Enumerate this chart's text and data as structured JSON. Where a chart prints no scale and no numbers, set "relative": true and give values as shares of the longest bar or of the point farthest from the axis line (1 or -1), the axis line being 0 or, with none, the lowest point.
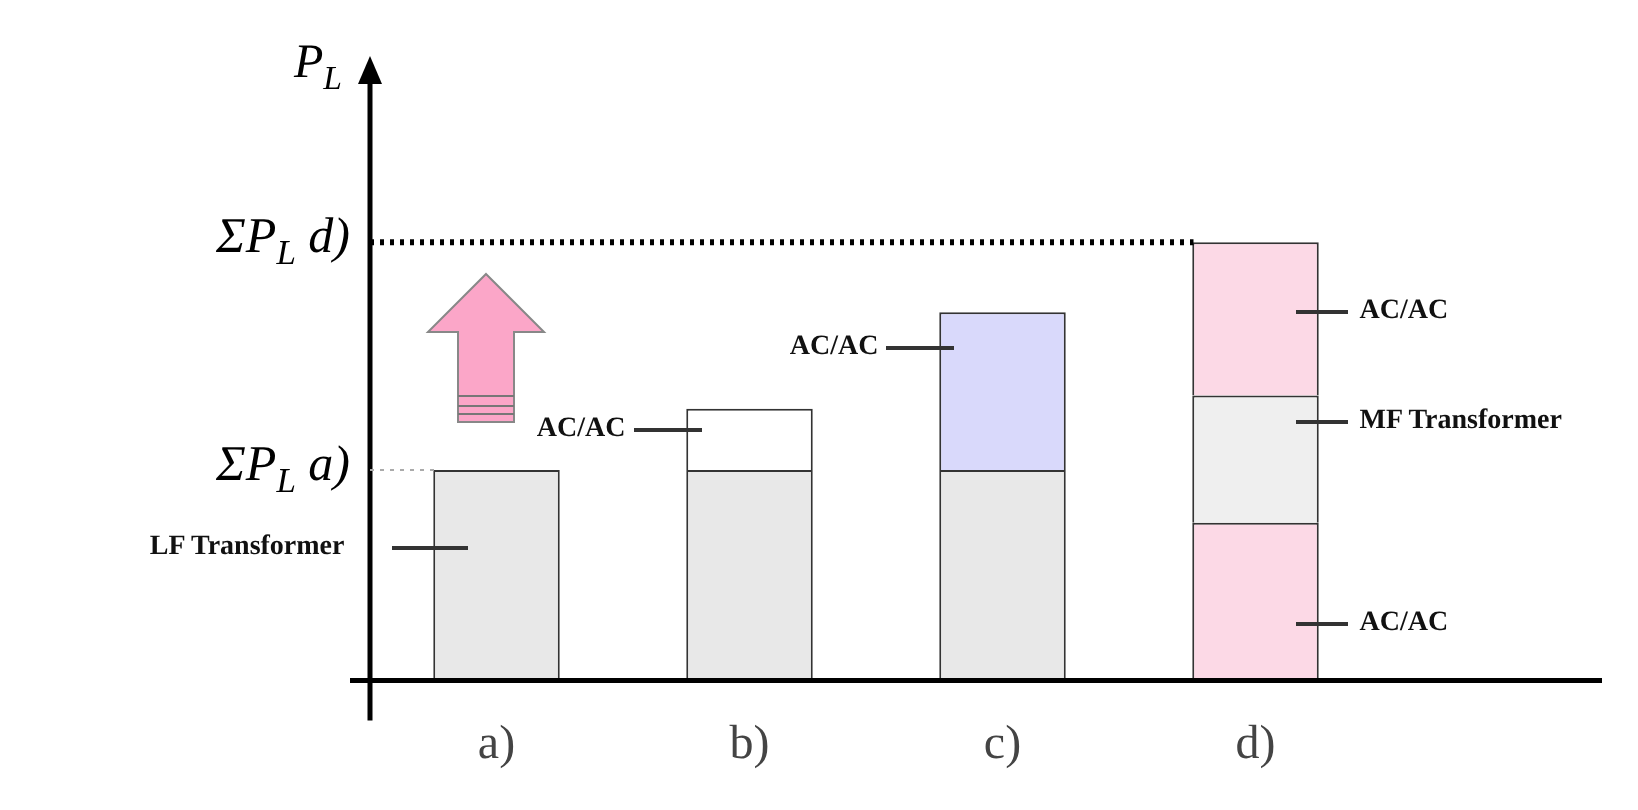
{
  "chart_data": {
    "type": "bar",
    "stacked": true,
    "relative": true,
    "ylabel": "P$_{L}$",
    "legend": false,
    "categories": [
      "a)",
      "b)",
      "c)",
      "d)"
    ],
    "series": [
      {
        "colors": [
          "#e8e8e8",
          "#e8e8e8",
          "#e8e8e8",
          "#fcd9e6"
        ],
        "values": [
          0.48,
          0.48,
          0.48,
          0.36
        ]
      },
      {
        "colors": [
          null,
          "#ffffff",
          "#d9d9fb",
          "#efefef"
        ],
        "values": [
          null,
          0.14,
          0.36,
          0.29
        ]
      },
      {
        "colors": [
          null,
          null,
          null,
          "#fcd9e6"
        ],
        "values": [
          null,
          null,
          null,
          0.35
        ]
      }
    ],
    "ref_lines": [
      {
        "axis": "y",
        "value": 1,
        "label": "ΣP$_{L}$ d)",
        "line_style": "dotted"
      },
      {
        "axis": "y",
        "value": 0.48,
        "label": "ΣP$_{L}$ a)",
        "line_style": "dotted"
      }
    ],
    "annotations": [
      "LF Transformer",
      "AC/AC",
      "AC/AC",
      "AC/AC",
      "MF Transformer",
      "AC/AC"
    ]
  }
}
